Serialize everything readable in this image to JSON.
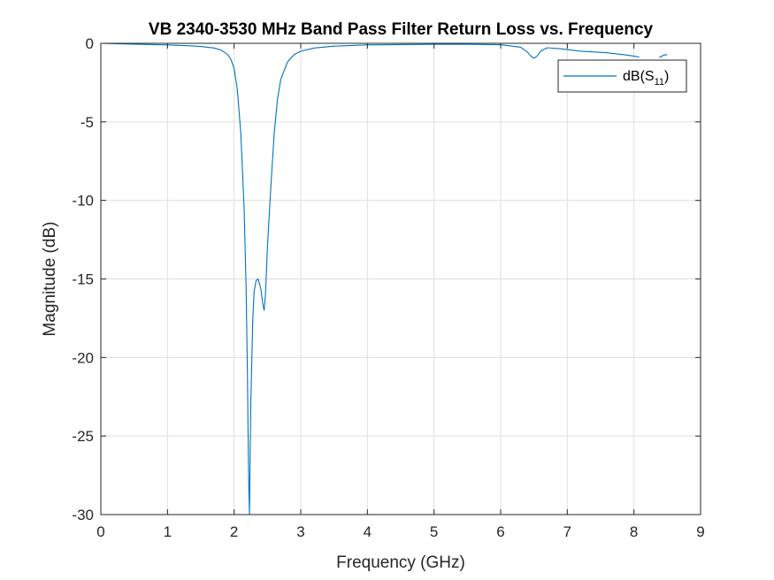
{
  "chart_data": {
    "type": "line",
    "title": "VB 2340-3530 MHz Band Pass Filter Return Loss vs. Frequency",
    "xlabel": "Frequency (GHz)",
    "ylabel": "Magnitude (dB)",
    "xlim": [
      0,
      9
    ],
    "ylim": [
      -30,
      0
    ],
    "xticks": [
      0,
      1,
      2,
      3,
      4,
      5,
      6,
      7,
      8,
      9
    ],
    "yticks": [
      0,
      -5,
      -10,
      -15,
      -20,
      -25,
      -30
    ],
    "grid": true,
    "legend": {
      "location": "top-right",
      "base": "dB(S",
      "subscript": "11",
      "suffix": ")"
    },
    "series": [
      {
        "name": "dB(S11)",
        "color": "#0072BD",
        "x": [
          0.0,
          0.5,
          1.0,
          1.3,
          1.5,
          1.7,
          1.8,
          1.9,
          1.95,
          2.0,
          2.05,
          2.1,
          2.15,
          2.18,
          2.2,
          2.21,
          2.22,
          2.23,
          2.25,
          2.28,
          2.3,
          2.33,
          2.36,
          2.4,
          2.43,
          2.45,
          2.47,
          2.5,
          2.55,
          2.6,
          2.65,
          2.7,
          2.8,
          2.9,
          3.0,
          3.2,
          3.5,
          4.0,
          4.5,
          5.0,
          5.5,
          6.0,
          6.3,
          6.4,
          6.45,
          6.5,
          6.55,
          6.6,
          6.7,
          6.9,
          7.2,
          7.6,
          7.9,
          8.05,
          8.08,
          null,
          8.38,
          8.45,
          8.5
        ],
        "y": [
          0.0,
          -0.05,
          -0.1,
          -0.15,
          -0.2,
          -0.3,
          -0.42,
          -0.7,
          -1.0,
          -1.6,
          -3.0,
          -5.7,
          -10.5,
          -15.5,
          -21.0,
          -25.0,
          -28.0,
          -30.0,
          -23.0,
          -17.5,
          -15.8,
          -15.1,
          -15.0,
          -15.6,
          -16.6,
          -17.0,
          -16.0,
          -13.0,
          -9.2,
          -5.8,
          -3.6,
          -2.3,
          -1.2,
          -0.72,
          -0.5,
          -0.3,
          -0.18,
          -0.1,
          -0.08,
          -0.06,
          -0.06,
          -0.09,
          -0.25,
          -0.55,
          -0.8,
          -0.95,
          -0.8,
          -0.5,
          -0.28,
          -0.35,
          -0.5,
          -0.6,
          -0.75,
          -0.85,
          -0.88,
          null,
          -0.9,
          -0.75,
          -0.72
        ]
      }
    ]
  }
}
